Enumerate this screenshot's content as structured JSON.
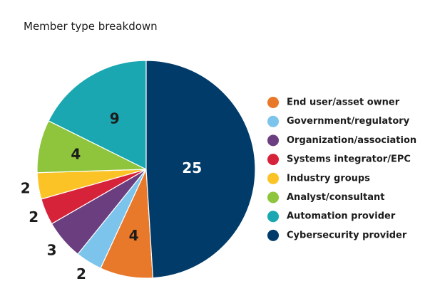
{
  "chart_data": {
    "type": "pie",
    "title": "Member type breakdown",
    "categories": [
      "End user/asset owner",
      "Government/regulatory",
      "Organization/association",
      "Systems integrator/EPC",
      "Industry groups",
      "Analyst/consultant",
      "Automation provider",
      "Cybersecurity provider"
    ],
    "values": [
      4,
      2,
      3,
      2,
      2,
      4,
      9,
      25
    ],
    "colors": [
      "#e8782a",
      "#7cc4ec",
      "#6b3f7f",
      "#d62339",
      "#fbc325",
      "#8fc43d",
      "#1aa7b1",
      "#003b69"
    ],
    "label_colors": [
      "#1c1c1c",
      "#1c1c1c",
      "#1c1c1c",
      "#1c1c1c",
      "#1c1c1c",
      "#1c1c1c",
      "#1c1c1c",
      "#ffffff"
    ],
    "legend_placement": "right",
    "start_angle_deg": 0,
    "direction": "clockwise",
    "draw_order": [
      7,
      0,
      1,
      2,
      3,
      4,
      5,
      6
    ]
  }
}
